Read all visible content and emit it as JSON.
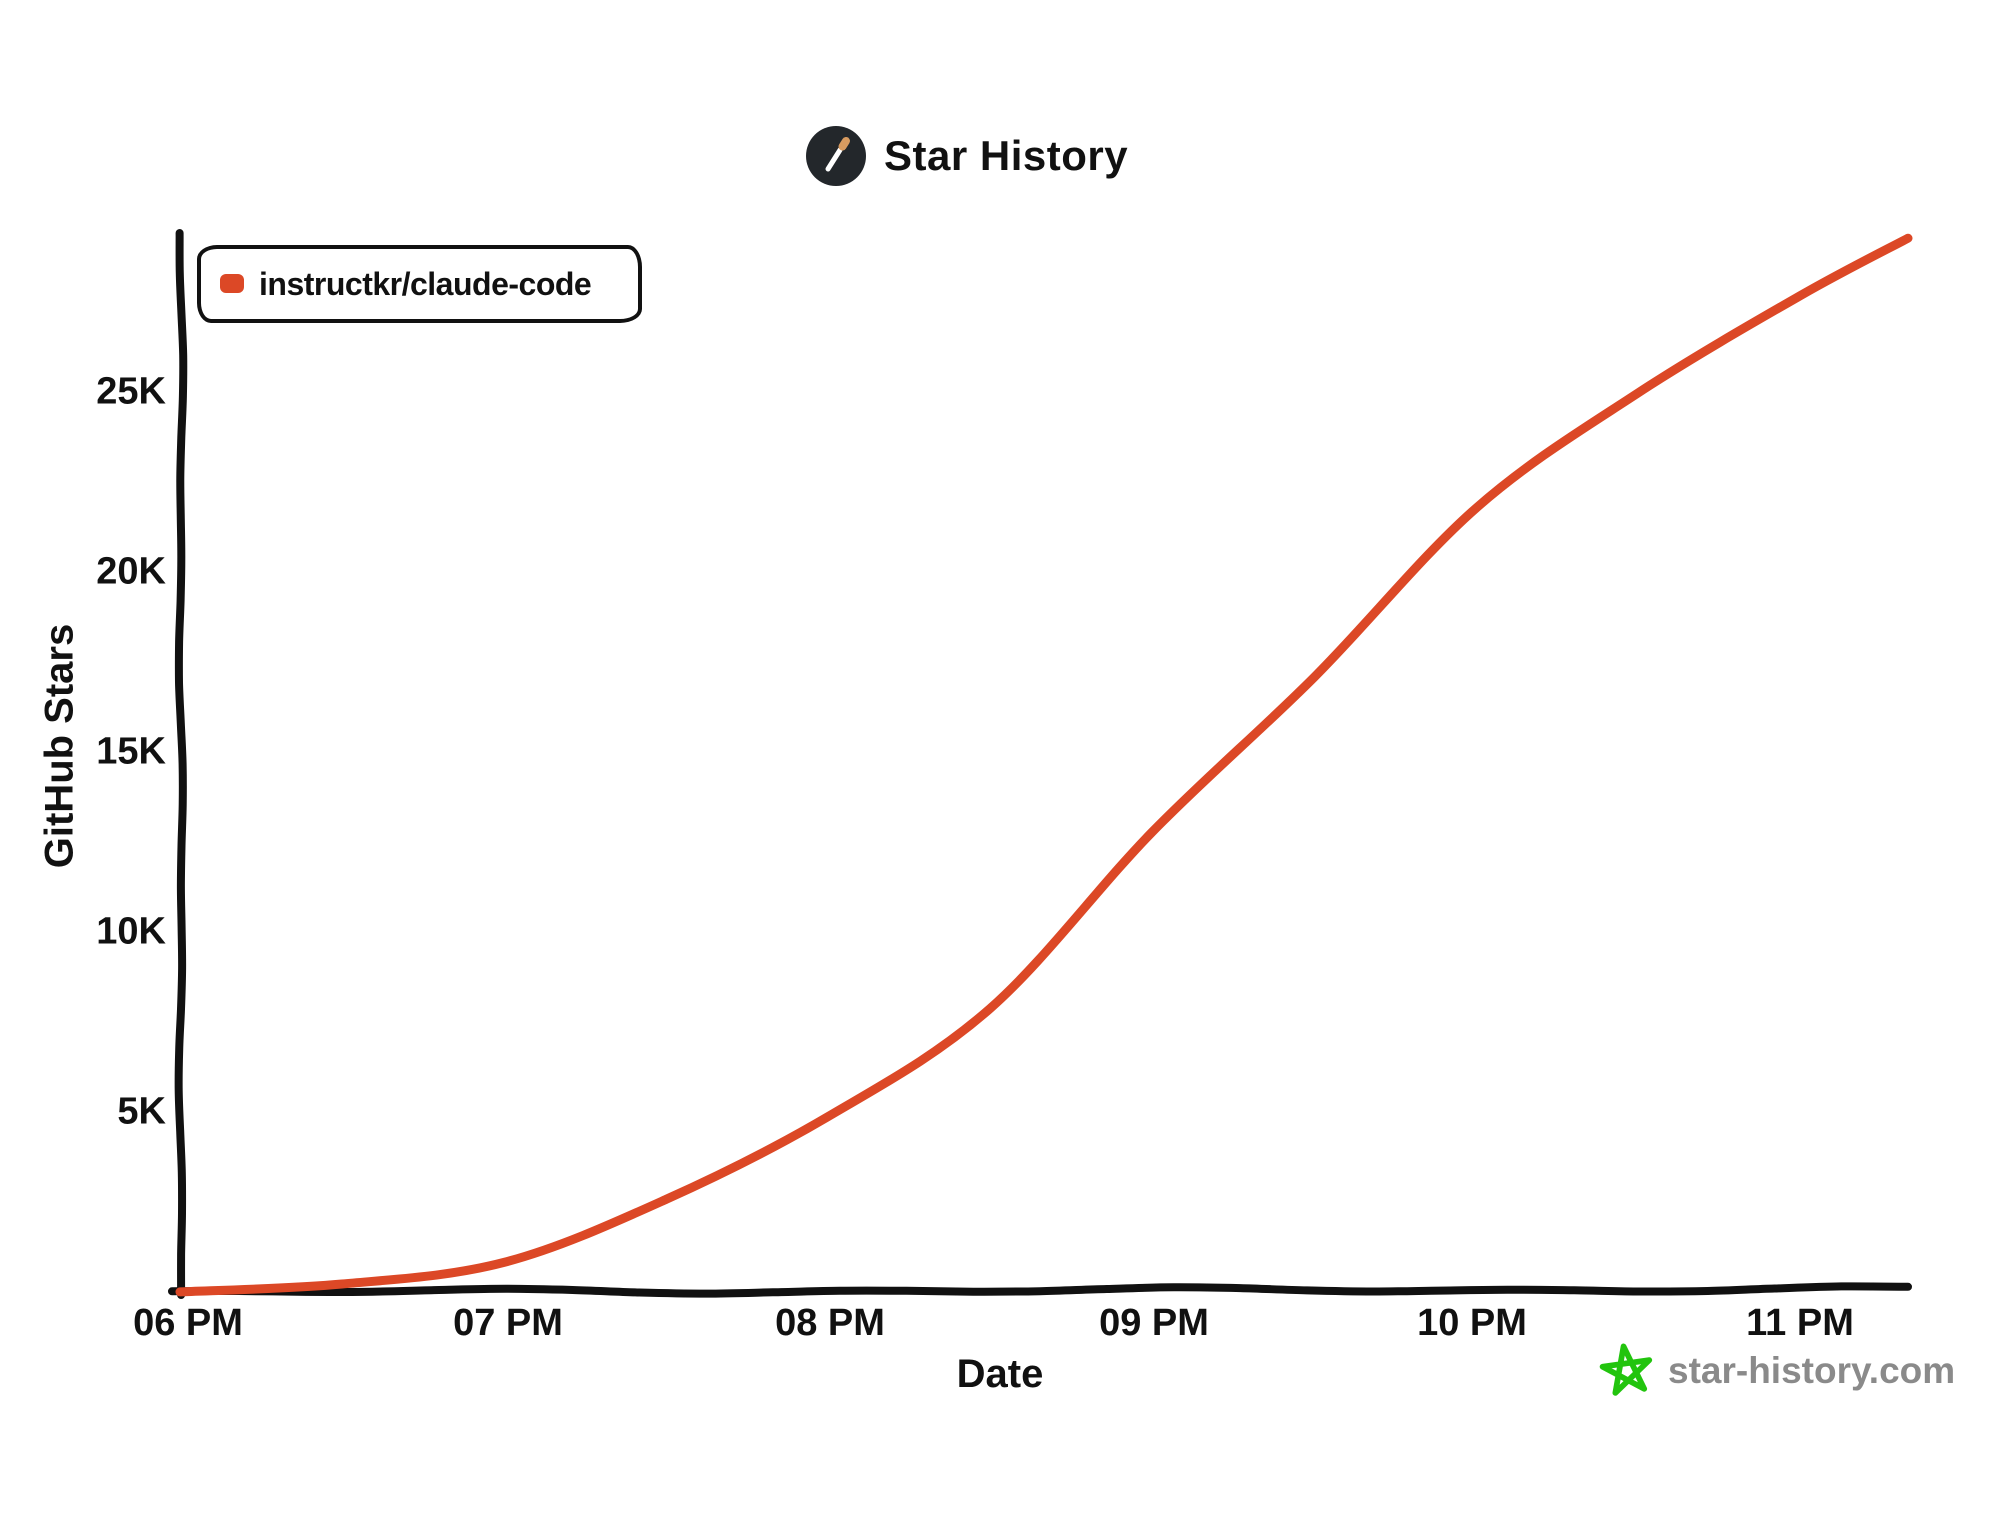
{
  "title": {
    "text": "Star History"
  },
  "legend": {
    "items": [
      {
        "label": "instructkr/claude-code",
        "marker_color": "#DC4826"
      }
    ]
  },
  "axes": {
    "y_label": "GitHub Stars",
    "x_label": "Date",
    "y_ticks": [
      "25K",
      "20K",
      "15K",
      "10K",
      "5K"
    ],
    "x_ticks": [
      "06 PM",
      "07 PM",
      "08 PM",
      "09 PM",
      "10 PM",
      "11 PM"
    ]
  },
  "watermark": {
    "text": "star-history.com"
  },
  "colors": {
    "series_line": "#DC4826",
    "axis": "#111111",
    "text": "#111111",
    "watermark_text": "#8A8A8A",
    "watermark_star": "#22C40E",
    "logo_bg": "#23272B",
    "logo_wand": "#FFFFFF",
    "logo_tip": "#D89B60",
    "background": "#FFFFFF"
  },
  "chart_data": {
    "type": "line",
    "title": "Star History",
    "xlabel": "Date",
    "ylabel": "GitHub Stars",
    "grid": false,
    "legend_position": "top-left",
    "ylim": [
      0,
      29500
    ],
    "y_tick_values": [
      5000,
      10000,
      15000,
      20000,
      25000
    ],
    "x_tick_times": [
      "18:00",
      "19:00",
      "20:00",
      "21:00",
      "22:00",
      "23:00"
    ],
    "x_tick_labels": [
      "06 PM",
      "07 PM",
      "08 PM",
      "09 PM",
      "10 PM",
      "11 PM"
    ],
    "series": [
      {
        "name": "instructkr/claude-code",
        "color": "#DC4826",
        "x": [
          "18:00",
          "18:30",
          "19:00",
          "19:30",
          "20:00",
          "20:30",
          "21:00",
          "21:30",
          "22:00",
          "22:30",
          "23:00",
          "23:20"
        ],
        "y": [
          30,
          250,
          850,
          2600,
          4900,
          7900,
          12800,
          17100,
          21800,
          25000,
          27700,
          29300
        ]
      }
    ]
  }
}
